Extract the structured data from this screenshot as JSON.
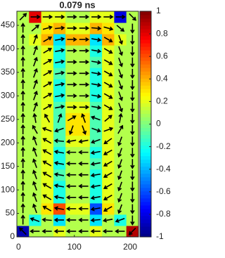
{
  "chart_data": {
    "type": "quiver-heatmap",
    "title": "0.079 ns",
    "xlim": [
      -3,
      215
    ],
    "ylim": [
      0,
      480
    ],
    "xticks": [
      0,
      100,
      200
    ],
    "yticks": [
      0,
      50,
      100,
      150,
      200,
      250,
      300,
      350,
      400,
      450
    ],
    "clim": [
      -1,
      1
    ],
    "cticks": [
      -1,
      -0.8,
      -0.6,
      -0.4,
      -0.2,
      0,
      0.2,
      0.4,
      0.6,
      0.8,
      1
    ],
    "colormap": "jet",
    "arrow_color": "#000000",
    "z": [
      [
        -0.9,
        0.1,
        0.1,
        0.2,
        0.1,
        0.1,
        0.2,
        0.1,
        0.1,
        0.9
      ],
      [
        0.1,
        -0.2,
        0.1,
        -0.3,
        0.1,
        0.1,
        -0.3,
        0.1,
        -0.2,
        0.1
      ],
      [
        0.1,
        0.1,
        0.3,
        0.6,
        0.2,
        0.2,
        -0.6,
        0.3,
        0.1,
        0.1
      ],
      [
        0.1,
        0.1,
        0.2,
        -0.2,
        0.1,
        0.1,
        -0.2,
        0.2,
        0.1,
        0.1
      ],
      [
        0.1,
        0.1,
        0.2,
        -0.2,
        0.1,
        0.1,
        -0.2,
        0.2,
        0.1,
        0.1
      ],
      [
        0.1,
        0.1,
        0.2,
        -0.1,
        0.1,
        0.1,
        -0.2,
        0.2,
        0.1,
        0.1
      ],
      [
        0.1,
        0.1,
        0.2,
        -0.2,
        0.1,
        0.1,
        -0.1,
        0.2,
        0.1,
        0.1
      ],
      [
        0.1,
        0.1,
        0.2,
        -0.2,
        0.1,
        0.1,
        -0.2,
        0.2,
        0.1,
        0.1
      ],
      [
        0.1,
        0.1,
        0.2,
        -0.1,
        0.2,
        0.2,
        -0.1,
        0.2,
        0.1,
        0.1
      ],
      [
        0.1,
        0.1,
        0.2,
        -0.1,
        0.3,
        0.3,
        -0.1,
        0.2,
        0.1,
        0.1
      ],
      [
        0.1,
        0.1,
        0.2,
        -0.1,
        0.3,
        0.3,
        -0.1,
        0.2,
        0.1,
        0.1
      ],
      [
        0.1,
        0.1,
        0.2,
        -0.1,
        0.2,
        0.2,
        -0.1,
        0.2,
        0.1,
        0.1
      ],
      [
        0.1,
        0.1,
        0.2,
        -0.2,
        0.1,
        0.1,
        -0.2,
        0.2,
        0.1,
        0.1
      ],
      [
        0.1,
        0.1,
        0.2,
        -0.2,
        0.1,
        0.1,
        -0.2,
        0.2,
        0.1,
        0.1
      ],
      [
        0.1,
        0.1,
        0.2,
        -0.1,
        0.1,
        0.1,
        -0.2,
        0.2,
        0.1,
        0.1
      ],
      [
        0.1,
        0.1,
        0.2,
        -0.2,
        0.1,
        0.1,
        -0.1,
        0.2,
        0.1,
        0.1
      ],
      [
        0.1,
        0.1,
        0.2,
        -0.2,
        0.1,
        0.1,
        -0.2,
        0.2,
        0.1,
        0.1
      ],
      [
        0.1,
        0.2,
        0.4,
        -0.3,
        0.4,
        0.4,
        -0.3,
        0.4,
        0.2,
        0.1
      ],
      [
        0.1,
        0.1,
        0.3,
        0.4,
        0.2,
        0.2,
        0.4,
        0.3,
        0.1,
        0.1
      ],
      [
        0.1,
        0.8,
        0.2,
        0.2,
        0.1,
        0.1,
        0.2,
        0.2,
        -0.8,
        0.1
      ]
    ],
    "arrow_angles": [
      [
        135,
        180,
        180,
        180,
        180,
        180,
        180,
        180,
        180,
        225
      ],
      [
        90,
        160,
        175,
        180,
        180,
        180,
        185,
        190,
        200,
        270
      ],
      [
        90,
        110,
        150,
        170,
        180,
        180,
        190,
        210,
        250,
        270
      ],
      [
        90,
        110,
        150,
        170,
        180,
        180,
        190,
        210,
        250,
        270
      ],
      [
        90,
        110,
        150,
        170,
        180,
        180,
        190,
        210,
        250,
        270
      ],
      [
        90,
        110,
        150,
        170,
        180,
        180,
        190,
        210,
        250,
        270
      ],
      [
        90,
        110,
        150,
        170,
        180,
        180,
        190,
        210,
        250,
        270
      ],
      [
        90,
        110,
        150,
        170,
        180,
        180,
        190,
        210,
        250,
        270
      ],
      [
        90,
        110,
        150,
        175,
        190,
        190,
        200,
        215,
        250,
        270
      ],
      [
        90,
        120,
        160,
        200,
        250,
        290,
        340,
        20,
        60,
        270
      ],
      [
        90,
        100,
        120,
        70,
        30,
        110,
        160,
        40,
        80,
        270
      ],
      [
        90,
        70,
        30,
        10,
        0,
        0,
        350,
        330,
        290,
        270
      ],
      [
        90,
        70,
        30,
        10,
        0,
        0,
        350,
        330,
        290,
        270
      ],
      [
        90,
        70,
        30,
        10,
        0,
        0,
        350,
        330,
        290,
        270
      ],
      [
        90,
        70,
        30,
        10,
        0,
        0,
        350,
        330,
        290,
        270
      ],
      [
        90,
        70,
        30,
        10,
        0,
        0,
        350,
        330,
        290,
        270
      ],
      [
        90,
        70,
        30,
        10,
        0,
        0,
        350,
        330,
        290,
        270
      ],
      [
        90,
        70,
        30,
        10,
        0,
        0,
        350,
        330,
        290,
        270
      ],
      [
        90,
        40,
        15,
        5,
        0,
        0,
        355,
        345,
        320,
        270
      ],
      [
        45,
        0,
        0,
        0,
        0,
        0,
        0,
        0,
        0,
        315
      ]
    ]
  }
}
